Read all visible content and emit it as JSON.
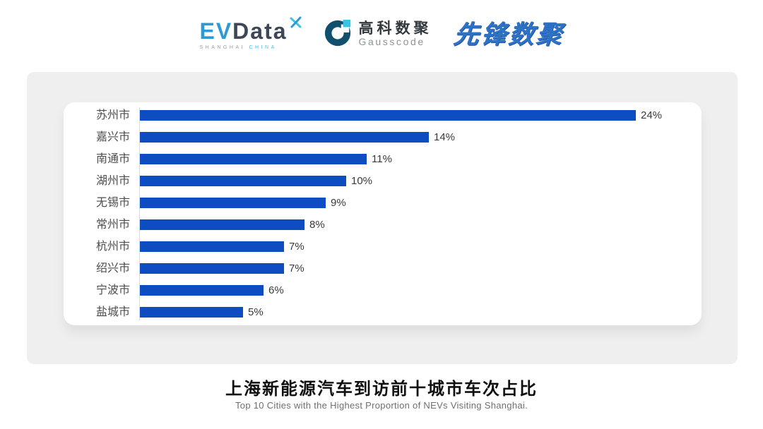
{
  "header": {
    "evdata": {
      "part1": "EV",
      "part2": "Data",
      "sub1": "SHANGHAI",
      "sub2": "CHINA"
    },
    "gausscode": {
      "name_cn": "高科数聚",
      "name_en": "Gausscode"
    },
    "xianfeng": {
      "name": "先锋数聚"
    }
  },
  "colors": {
    "ev_blue": "#2D9AD3",
    "slate": "#3C4757",
    "cyan_accent": "#3FC0E6",
    "gauss_dark": "#10506C",
    "pioneer_blue": "#2E72C6",
    "card_gray": "#EFEFEF"
  },
  "chart_data": {
    "type": "bar",
    "orientation": "horizontal",
    "categories": [
      "苏州市",
      "嘉兴市",
      "南通市",
      "湖州市",
      "无锡市",
      "常州市",
      "杭州市",
      "绍兴市",
      "宁波市",
      "盐城市"
    ],
    "values": [
      24,
      14,
      11,
      10,
      9,
      8,
      7,
      7,
      6,
      5
    ],
    "value_suffix": "%",
    "bar_color": "#0D4CC1",
    "xlim": [
      0,
      24
    ],
    "grid": false,
    "legend": false,
    "title": "上海新能源汽车到访前十城市车次占比",
    "subtitle": "Top 10 Cities with the Highest Proportion of  NEVs Visiting Shanghai."
  }
}
